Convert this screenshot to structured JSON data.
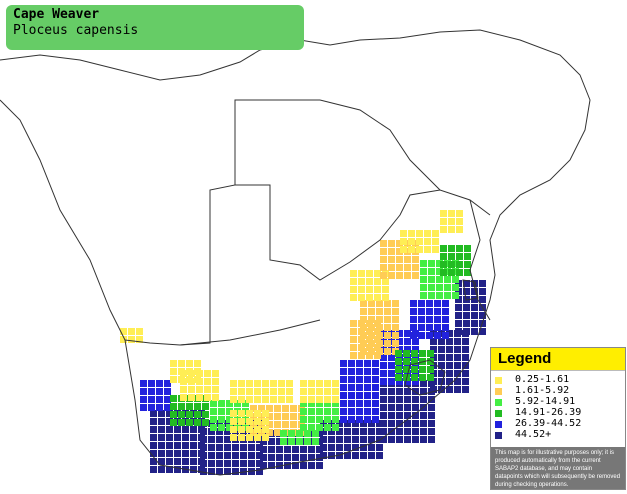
{
  "title": {
    "common_name": "Cape Weaver",
    "scientific_name": "Ploceus capensis"
  },
  "legend": {
    "title": "Legend",
    "items": [
      {
        "label": "0.25-1.61",
        "color": "#ffee55"
      },
      {
        "label": "1.61-5.92",
        "color": "#ffcc55"
      },
      {
        "label": "5.92-14.91",
        "color": "#44ee44"
      },
      {
        "label": "14.91-26.39",
        "color": "#22bb22"
      },
      {
        "label": "26.39-44.52",
        "color": "#2222dd"
      },
      {
        "label": "44.52+",
        "color": "#222288"
      }
    ],
    "disclaimer": "This map is for illustrative purposes only; it is produced automatically from the current SABAP2 database, and may contain datapoints which will subsequently be removed during checking operations."
  },
  "colors": {
    "title_background": "#66cc66",
    "legend_header": "#ffee00",
    "border_lines": "#333333"
  }
}
